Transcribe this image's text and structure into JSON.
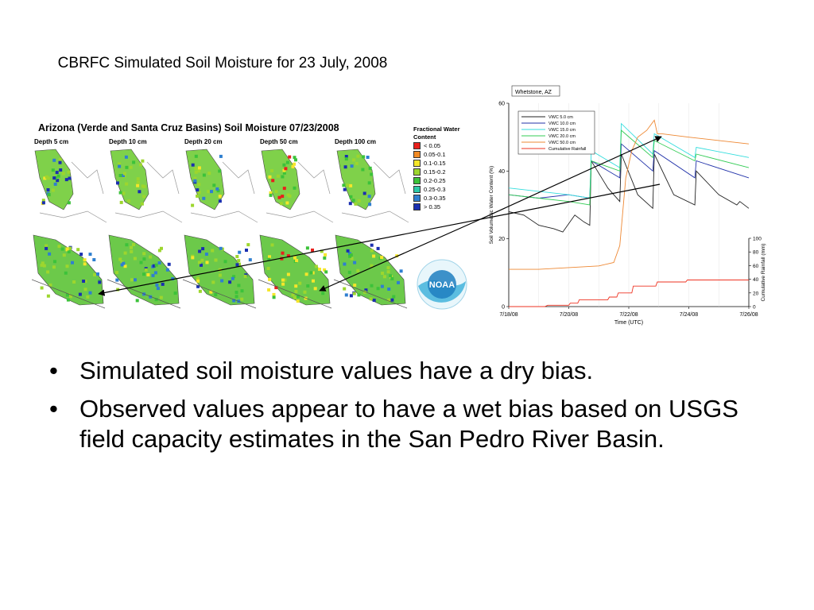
{
  "slide_title": "CBRFC Simulated Soil Moisture for 23 July, 2008",
  "maps": {
    "title": "Arizona (Verde and Santa Cruz Basins) Soil Moisture 07/23/2008",
    "depths": [
      "Depth 5 cm",
      "Depth 10 cm",
      "Depth 20 cm",
      "Depth 50 cm",
      "Depth 100 cm"
    ],
    "legend_title": "Fractional Water Content",
    "legend": [
      {
        "label": "< 0.05",
        "color": "#e8201c"
      },
      {
        "label": "0.05-0.1",
        "color": "#f08a24"
      },
      {
        "label": "0.1-0.15",
        "color": "#f5e62a"
      },
      {
        "label": "0.15-0.2",
        "color": "#9dd62e"
      },
      {
        "label": "0.2-0.25",
        "color": "#3cc23a"
      },
      {
        "label": "0.25-0.3",
        "color": "#2dc9a8"
      },
      {
        "label": "0.3-0.35",
        "color": "#2f7fd0"
      },
      {
        "label": "> 0.35",
        "color": "#1a2fb0"
      }
    ],
    "logo_text": "NOAA"
  },
  "chart_data": {
    "type": "line",
    "title": "Whetstone, AZ",
    "xlabel": "Time (UTC)",
    "ylabel": "Soil Volumetric Water Content (%)",
    "y2label": "Cumulative Rainfall (mm)",
    "xticks": [
      "7/18/08",
      "7/20/08",
      "7/22/08",
      "7/24/08",
      "7/26/08"
    ],
    "xlim": [
      0,
      8
    ],
    "ylim": [
      0,
      60
    ],
    "y2lim": [
      0,
      100
    ],
    "yticks": [
      0,
      20,
      40,
      60
    ],
    "y2ticks": [
      0,
      20,
      40,
      60,
      80,
      100
    ],
    "legend_position": "top-left",
    "series": [
      {
        "name": "VWC 5.0 cm",
        "axis": "left",
        "color": "#222222",
        "x": [
          0,
          0.5,
          1,
          1.5,
          1.8,
          2.2,
          2.5,
          2.7,
          2.75,
          3.3,
          3.7,
          3.75,
          4.3,
          4.8,
          4.85,
          5.5,
          6.2,
          6.25,
          7,
          7.6,
          7.7,
          8
        ],
        "y": [
          28,
          27,
          24,
          23,
          22,
          27,
          25,
          24,
          43,
          35,
          31,
          45,
          33,
          29,
          45,
          33,
          30,
          40,
          33,
          30,
          31,
          29
        ]
      },
      {
        "name": "VWC 10.0 cm",
        "axis": "left",
        "color": "#2233aa",
        "x": [
          0,
          1,
          2,
          2.7,
          2.75,
          3.7,
          3.75,
          4.8,
          4.85,
          6.2,
          6.25,
          8
        ],
        "y": [
          33,
          32,
          33,
          32,
          43,
          38,
          48,
          40,
          46,
          38,
          43,
          38
        ]
      },
      {
        "name": "VWC 15.0 cm",
        "axis": "left",
        "color": "#33dddd",
        "x": [
          0,
          1,
          2,
          2.7,
          2.75,
          3.7,
          3.75,
          4.8,
          4.85,
          6.2,
          6.25,
          8
        ],
        "y": [
          35,
          34,
          33,
          32,
          46,
          41,
          54,
          45,
          51,
          44,
          47,
          44
        ]
      },
      {
        "name": "VWC 20.0 cm",
        "axis": "left",
        "color": "#33cc55",
        "x": [
          0,
          1,
          2,
          2.7,
          2.75,
          3.7,
          3.75,
          4.8,
          4.85,
          6.2,
          6.25,
          8
        ],
        "y": [
          33,
          32,
          31,
          30,
          43,
          40,
          52,
          44,
          49,
          43,
          45,
          41
        ]
      },
      {
        "name": "VWC 50.0 cm",
        "axis": "left",
        "color": "#ee8833",
        "x": [
          0,
          1,
          2,
          3,
          3.5,
          3.7,
          3.9,
          4.1,
          4.3,
          4.6,
          4.85,
          4.95,
          5.1,
          6,
          7,
          8
        ],
        "y": [
          11,
          11,
          11.5,
          12,
          13,
          18,
          38,
          46,
          50,
          52,
          55,
          51,
          51,
          50,
          49,
          48
        ]
      },
      {
        "name": "Cumulative Rainfall",
        "axis": "right",
        "color": "#ee3322",
        "x": [
          0,
          1.2,
          1.3,
          2.0,
          2.05,
          2.3,
          2.35,
          3.3,
          3.35,
          3.6,
          3.65,
          4.1,
          4.15,
          4.9,
          4.95,
          5.9,
          5.95,
          8
        ],
        "y": [
          0,
          0,
          2,
          2,
          5,
          5,
          10,
          10,
          14,
          14,
          20,
          20,
          30,
          30,
          36,
          36,
          39,
          39
        ]
      }
    ]
  },
  "bullets": [
    "Simulated soil moisture values have a dry bias.",
    "Observed values appear to have a wet bias based on USGS field capacity estimates in the San Pedro River Basin."
  ]
}
